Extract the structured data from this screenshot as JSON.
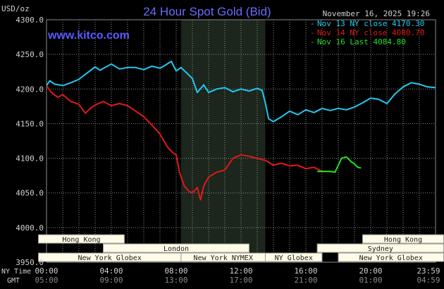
{
  "chart_data": {
    "type": "line",
    "title": "24 Hour Spot Gold (Bid)",
    "source_watermark": "www.kitco.com",
    "timestamp": "November 16, 2025 19:26",
    "ylabel": "USD/oz",
    "ylim": [
      3950,
      4300
    ],
    "y_ticks": [
      "4300.0",
      "4250.0",
      "4200.0",
      "4150.0",
      "4100.0",
      "4050.0",
      "4000.0",
      "3950.0"
    ],
    "x_row1_label": "NY Time",
    "x_row2_label": "GMT",
    "x_ticks_ny": [
      "00:00",
      "04:00",
      "08:00",
      "12:00",
      "16:00",
      "20:00",
      "23:59"
    ],
    "x_ticks_gmt": [
      "05:00",
      "09:00",
      "13:00",
      "17:00",
      "21:00",
      "01:00",
      "04:59"
    ],
    "grid": true,
    "legend_position": "top-right",
    "shaded_session": "New York NYMEX",
    "series": [
      {
        "name": "Nov 13 NY close 4170.30",
        "color": "#22c8f0",
        "x": [
          0,
          0.2,
          0.5,
          1,
          1.5,
          2,
          2.5,
          3,
          3.3,
          3.6,
          4,
          4.5,
          5,
          5.5,
          6,
          6.5,
          7,
          7.3,
          7.7,
          8,
          8.3,
          8.7,
          9,
          9.3,
          9.7,
          10,
          10.5,
          11,
          11.5,
          12,
          12.5,
          13,
          13.3,
          13.5,
          13.7,
          14,
          14.5,
          15,
          15.5,
          16,
          16.5,
          17,
          17.5,
          18,
          18.5,
          19,
          19.5,
          20,
          20.5,
          21,
          21.5,
          22,
          22.5,
          23,
          23.5,
          23.98
        ],
        "values": [
          4205,
          4212,
          4207,
          4205,
          4209,
          4214,
          4223,
          4232,
          4227,
          4231,
          4236,
          4229,
          4231,
          4231,
          4228,
          4233,
          4230,
          4234,
          4240,
          4226,
          4231,
          4222,
          4215,
          4195,
          4206,
          4195,
          4200,
          4202,
          4196,
          4200,
          4197,
          4201,
          4198,
          4180,
          4157,
          4153,
          4160,
          4168,
          4163,
          4170,
          4166,
          4172,
          4169,
          4172,
          4170,
          4174,
          4180,
          4187,
          4185,
          4179,
          4193,
          4203,
          4209,
          4207,
          4203,
          4202
        ]
      },
      {
        "name": "Nov 14 NY close 4080.70",
        "color": "#e01818",
        "x": [
          0,
          0.3,
          0.7,
          1,
          1.5,
          2,
          2.4,
          2.7,
          3,
          3.5,
          4,
          4.5,
          5,
          5.5,
          6,
          6.5,
          7,
          7.5,
          7.8,
          8,
          8.2,
          8.5,
          8.8,
          9,
          9.3,
          9.5,
          9.7,
          10,
          10.5,
          11,
          11.5,
          12,
          12.5,
          13,
          13.5,
          14,
          14.5,
          15,
          15.5,
          16,
          16.5,
          17,
          17.5
        ],
        "values": [
          4205,
          4195,
          4188,
          4192,
          4182,
          4178,
          4165,
          4172,
          4177,
          4182,
          4176,
          4179,
          4176,
          4168,
          4160,
          4148,
          4135,
          4115,
          4108,
          4105,
          4080,
          4060,
          4052,
          4050,
          4058,
          4040,
          4060,
          4073,
          4080,
          4083,
          4100,
          4105,
          4103,
          4100,
          4097,
          4090,
          4093,
          4089,
          4090,
          4085,
          4087,
          4081,
          4081
        ]
      },
      {
        "name": "Nov 16 Last 4084.80",
        "color": "#22e022",
        "x": [
          16.7,
          17,
          17.5,
          17.8,
          18,
          18.2,
          18.5,
          18.8,
          19,
          19.2,
          19.4
        ],
        "values": [
          4081,
          4081,
          4081,
          4080,
          4090,
          4100,
          4102,
          4095,
          4092,
          4087,
          4086
        ]
      }
    ],
    "sessions": [
      {
        "label": "Hong Kong",
        "row": 0,
        "start": -0.5,
        "end": 4.8
      },
      {
        "label": "London",
        "row": 1,
        "start": 3.5,
        "end": 12.5
      },
      {
        "label": "New York Globex",
        "row": 2,
        "start": -0.5,
        "end": 8.3
      },
      {
        "label": "New York NYMEX",
        "row": 2,
        "start": 8.3,
        "end": 13.5
      },
      {
        "label": "NY Globex",
        "row": 2,
        "start": 13.5,
        "end": 17.0
      },
      {
        "label": "Hong Kong",
        "row": 0,
        "start": 19.5,
        "end": 24.5
      },
      {
        "label": "Sydney",
        "row": 1,
        "start": 16.7,
        "end": 24.5
      },
      {
        "label": "New York Globex",
        "row": 2,
        "start": 18.0,
        "end": 24.5
      }
    ]
  },
  "colors": {
    "background": "#000000",
    "grid": "#8a8a8a",
    "title": "#6a6aff",
    "watermark": "#5a5aff",
    "text": "#d0d0d0",
    "session_box_fill": "#fffbe6",
    "session_box_text": "#1a1a1a",
    "shade": "#1c261c"
  }
}
